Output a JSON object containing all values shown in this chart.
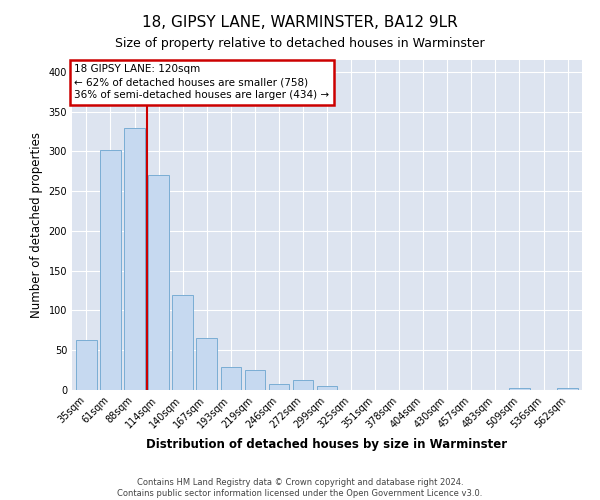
{
  "title": "18, GIPSY LANE, WARMINSTER, BA12 9LR",
  "subtitle": "Size of property relative to detached houses in Warminster",
  "xlabel": "Distribution of detached houses by size in Warminster",
  "ylabel": "Number of detached properties",
  "bar_labels": [
    "35sqm",
    "61sqm",
    "88sqm",
    "114sqm",
    "140sqm",
    "167sqm",
    "193sqm",
    "219sqm",
    "246sqm",
    "272sqm",
    "299sqm",
    "325sqm",
    "351sqm",
    "378sqm",
    "404sqm",
    "430sqm",
    "457sqm",
    "483sqm",
    "509sqm",
    "536sqm",
    "562sqm"
  ],
  "bar_values": [
    63,
    302,
    330,
    270,
    120,
    65,
    29,
    25,
    8,
    12,
    5,
    0,
    0,
    0,
    0,
    0,
    0,
    0,
    3,
    0,
    2
  ],
  "bar_color": "#c6d9f0",
  "bar_edge_color": "#7aadd4",
  "vline_color": "#cc0000",
  "vline_x": 2.5,
  "annotation_text": "18 GIPSY LANE: 120sqm\n← 62% of detached houses are smaller (758)\n36% of semi-detached houses are larger (434) →",
  "annotation_box_color": "#ffffff",
  "annotation_box_edge_color": "#cc0000",
  "ylim": [
    0,
    415
  ],
  "yticks": [
    0,
    50,
    100,
    150,
    200,
    250,
    300,
    350,
    400
  ],
  "bg_color": "#dde4f0",
  "footer": "Contains HM Land Registry data © Crown copyright and database right 2024.\nContains public sector information licensed under the Open Government Licence v3.0.",
  "title_fontsize": 11,
  "subtitle_fontsize": 9,
  "axis_label_fontsize": 8.5,
  "tick_fontsize": 7,
  "footer_fontsize": 6,
  "annotation_fontsize": 7.5
}
